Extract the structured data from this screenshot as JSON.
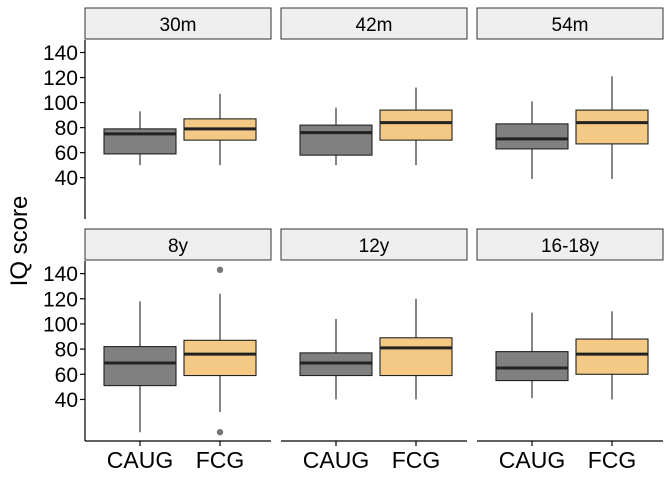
{
  "chart_data": {
    "type": "boxplot",
    "ylabel": "IQ score",
    "xlabel": "",
    "yticks": [
      40,
      60,
      80,
      100,
      120,
      140
    ],
    "ylim": [
      7,
      150
    ],
    "categories": [
      "CAUG",
      "FCG"
    ],
    "colors": {
      "CAUG": "#808080",
      "FCG": "#F3C985"
    },
    "panels": [
      {
        "title": "30m",
        "groups": [
          {
            "name": "CAUG",
            "min": 50,
            "q1": 59,
            "median": 75,
            "q3": 79,
            "max": 93,
            "outliers": []
          },
          {
            "name": "FCG",
            "min": 50,
            "q1": 70,
            "median": 79,
            "q3": 87,
            "max": 107,
            "outliers": []
          }
        ]
      },
      {
        "title": "42m",
        "groups": [
          {
            "name": "CAUG",
            "min": 50,
            "q1": 58,
            "median": 76,
            "q3": 82,
            "max": 96,
            "outliers": []
          },
          {
            "name": "FCG",
            "min": 50,
            "q1": 70,
            "median": 84,
            "q3": 94,
            "max": 112,
            "outliers": []
          }
        ]
      },
      {
        "title": "54m",
        "groups": [
          {
            "name": "CAUG",
            "min": 39,
            "q1": 63,
            "median": 71,
            "q3": 83,
            "max": 101,
            "outliers": []
          },
          {
            "name": "FCG",
            "min": 39,
            "q1": 67,
            "median": 84,
            "q3": 94,
            "max": 121,
            "outliers": []
          }
        ]
      },
      {
        "title": "8y",
        "groups": [
          {
            "name": "CAUG",
            "min": 14,
            "q1": 51,
            "median": 69,
            "q3": 82,
            "max": 118,
            "outliers": []
          },
          {
            "name": "FCG",
            "min": 30,
            "q1": 59,
            "median": 76,
            "q3": 87,
            "max": 124,
            "outliers": [
              143,
              14
            ]
          }
        ]
      },
      {
        "title": "12y",
        "groups": [
          {
            "name": "CAUG",
            "min": 40,
            "q1": 59,
            "median": 69,
            "q3": 77,
            "max": 104,
            "outliers": []
          },
          {
            "name": "FCG",
            "min": 40,
            "q1": 59,
            "median": 81,
            "q3": 89,
            "max": 120,
            "outliers": []
          }
        ]
      },
      {
        "title": "16-18y",
        "groups": [
          {
            "name": "CAUG",
            "min": 41,
            "q1": 55,
            "median": 65,
            "q3": 78,
            "max": 109,
            "outliers": []
          },
          {
            "name": "FCG",
            "min": 40,
            "q1": 60,
            "median": 76,
            "q3": 88,
            "max": 110,
            "outliers": []
          }
        ]
      }
    ]
  }
}
